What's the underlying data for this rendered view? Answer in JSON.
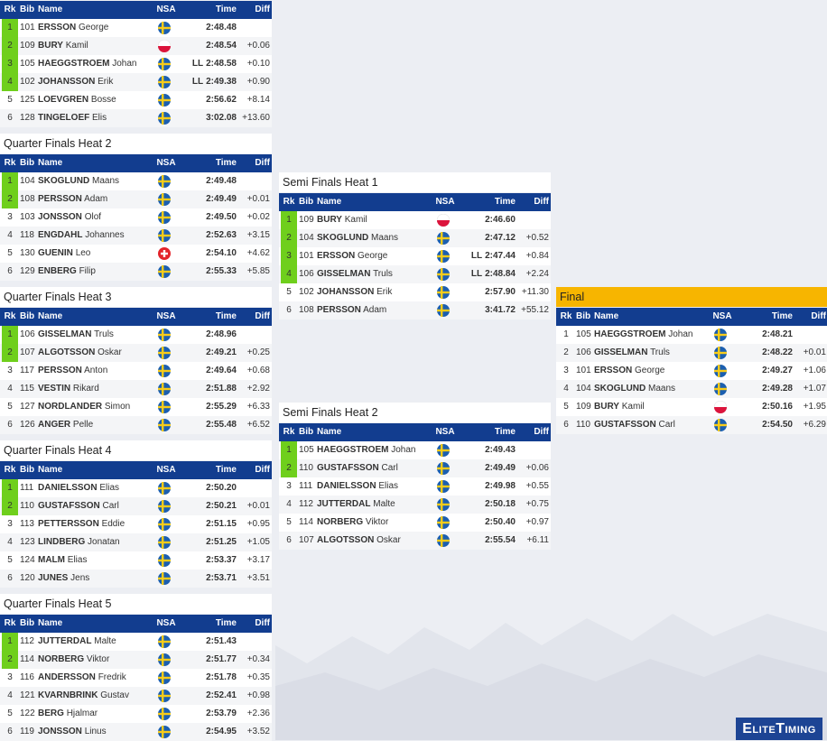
{
  "columns": {
    "rank": "Rk",
    "bib": "Bib",
    "name": "Name",
    "nsa": "NSA",
    "time": "Time",
    "diff": "Diff"
  },
  "heats": [
    {
      "qualified": 4,
      "rows": [
        {
          "rank": 1,
          "bib": 101,
          "last": "ERSSON",
          "first": "George",
          "flag": "SWE",
          "time": "2:48.48"
        },
        {
          "rank": 2,
          "bib": 109,
          "last": "BURY",
          "first": "Kamil",
          "flag": "POL",
          "time": "2:48.54",
          "diff": "+0.06"
        },
        {
          "rank": 3,
          "bib": 105,
          "last": "HAEGGSTROEM",
          "first": "Johan",
          "flag": "SWE",
          "note": "LL",
          "time": "2:48.58",
          "diff": "+0.10"
        },
        {
          "rank": 4,
          "bib": 102,
          "last": "JOHANSSON",
          "first": "Erik",
          "flag": "SWE",
          "note": "LL",
          "time": "2:49.38",
          "diff": "+0.90"
        },
        {
          "rank": 5,
          "bib": 125,
          "last": "LOEVGREN",
          "first": "Bosse",
          "flag": "SWE",
          "time": "2:56.62",
          "diff": "+8.14"
        },
        {
          "rank": 6,
          "bib": 128,
          "last": "TINGELOEF",
          "first": "Elis",
          "flag": "SWE",
          "time": "3:02.08",
          "diff": "+13.60"
        }
      ]
    },
    {
      "title": "Quarter Finals Heat 2",
      "qualified": 2,
      "rows": [
        {
          "rank": 1,
          "bib": 104,
          "last": "SKOGLUND",
          "first": "Maans",
          "flag": "SWE",
          "time": "2:49.48"
        },
        {
          "rank": 2,
          "bib": 108,
          "last": "PERSSON",
          "first": "Adam",
          "flag": "SWE",
          "time": "2:49.49",
          "diff": "+0.01"
        },
        {
          "rank": 3,
          "bib": 103,
          "last": "JONSSON",
          "first": "Olof",
          "flag": "SWE",
          "time": "2:49.50",
          "diff": "+0.02"
        },
        {
          "rank": 4,
          "bib": 118,
          "last": "ENGDAHL",
          "first": "Johannes",
          "flag": "SWE",
          "time": "2:52.63",
          "diff": "+3.15"
        },
        {
          "rank": 5,
          "bib": 130,
          "last": "GUENIN",
          "first": "Leo",
          "flag": "SUI",
          "time": "2:54.10",
          "diff": "+4.62"
        },
        {
          "rank": 6,
          "bib": 129,
          "last": "ENBERG",
          "first": "Filip",
          "flag": "SWE",
          "time": "2:55.33",
          "diff": "+5.85"
        }
      ]
    },
    {
      "title": "Quarter Finals Heat 3",
      "qualified": 2,
      "rows": [
        {
          "rank": 1,
          "bib": 106,
          "last": "GISSELMAN",
          "first": "Truls",
          "flag": "SWE",
          "time": "2:48.96"
        },
        {
          "rank": 2,
          "bib": 107,
          "last": "ALGOTSSON",
          "first": "Oskar",
          "flag": "SWE",
          "time": "2:49.21",
          "diff": "+0.25"
        },
        {
          "rank": 3,
          "bib": 117,
          "last": "PERSSON",
          "first": "Anton",
          "flag": "SWE",
          "time": "2:49.64",
          "diff": "+0.68"
        },
        {
          "rank": 4,
          "bib": 115,
          "last": "VESTIN",
          "first": "Rikard",
          "flag": "SWE",
          "time": "2:51.88",
          "diff": "+2.92"
        },
        {
          "rank": 5,
          "bib": 127,
          "last": "NORDLANDER",
          "first": "Simon",
          "flag": "SWE",
          "time": "2:55.29",
          "diff": "+6.33"
        },
        {
          "rank": 6,
          "bib": 126,
          "last": "ANGER",
          "first": "Pelle",
          "flag": "SWE",
          "time": "2:55.48",
          "diff": "+6.52"
        }
      ]
    },
    {
      "title": "Quarter Finals Heat 4",
      "qualified": 2,
      "rows": [
        {
          "rank": 1,
          "bib": 111,
          "last": "DANIELSSON",
          "first": "Elias",
          "flag": "SWE",
          "time": "2:50.20"
        },
        {
          "rank": 2,
          "bib": 110,
          "last": "GUSTAFSSON",
          "first": "Carl",
          "flag": "SWE",
          "time": "2:50.21",
          "diff": "+0.01"
        },
        {
          "rank": 3,
          "bib": 113,
          "last": "PETTERSSON",
          "first": "Eddie",
          "flag": "SWE",
          "time": "2:51.15",
          "diff": "+0.95"
        },
        {
          "rank": 4,
          "bib": 123,
          "last": "LINDBERG",
          "first": "Jonatan",
          "flag": "SWE",
          "time": "2:51.25",
          "diff": "+1.05"
        },
        {
          "rank": 5,
          "bib": 124,
          "last": "MALM",
          "first": "Elias",
          "flag": "SWE",
          "time": "2:53.37",
          "diff": "+3.17"
        },
        {
          "rank": 6,
          "bib": 120,
          "last": "JUNES",
          "first": "Jens",
          "flag": "SWE",
          "time": "2:53.71",
          "diff": "+3.51"
        }
      ]
    },
    {
      "title": "Quarter Finals Heat 5",
      "qualified": 2,
      "rows": [
        {
          "rank": 1,
          "bib": 112,
          "last": "JUTTERDAL",
          "first": "Malte",
          "flag": "SWE",
          "time": "2:51.43"
        },
        {
          "rank": 2,
          "bib": 114,
          "last": "NORBERG",
          "first": "Viktor",
          "flag": "SWE",
          "time": "2:51.77",
          "diff": "+0.34"
        },
        {
          "rank": 3,
          "bib": 116,
          "last": "ANDERSSON",
          "first": "Fredrik",
          "flag": "SWE",
          "time": "2:51.78",
          "diff": "+0.35"
        },
        {
          "rank": 4,
          "bib": 121,
          "last": "KVARNBRINK",
          "first": "Gustav",
          "flag": "SWE",
          "time": "2:52.41",
          "diff": "+0.98"
        },
        {
          "rank": 5,
          "bib": 122,
          "last": "BERG",
          "first": "Hjalmar",
          "flag": "SWE",
          "time": "2:53.79",
          "diff": "+2.36"
        },
        {
          "rank": 6,
          "bib": 119,
          "last": "JONSSON",
          "first": "Linus",
          "flag": "SWE",
          "time": "2:54.95",
          "diff": "+3.52"
        }
      ]
    },
    {
      "title": "Semi Finals Heat 1",
      "qualified": 4,
      "rows": [
        {
          "rank": 1,
          "bib": 109,
          "last": "BURY",
          "first": "Kamil",
          "flag": "POL",
          "time": "2:46.60"
        },
        {
          "rank": 2,
          "bib": 104,
          "last": "SKOGLUND",
          "first": "Maans",
          "flag": "SWE",
          "time": "2:47.12",
          "diff": "+0.52"
        },
        {
          "rank": 3,
          "bib": 101,
          "last": "ERSSON",
          "first": "George",
          "flag": "SWE",
          "note": "LL",
          "time": "2:47.44",
          "diff": "+0.84"
        },
        {
          "rank": 4,
          "bib": 106,
          "last": "GISSELMAN",
          "first": "Truls",
          "flag": "SWE",
          "note": "LL",
          "time": "2:48.84",
          "diff": "+2.24"
        },
        {
          "rank": 5,
          "bib": 102,
          "last": "JOHANSSON",
          "first": "Erik",
          "flag": "SWE",
          "time": "2:57.90",
          "diff": "+11.30"
        },
        {
          "rank": 6,
          "bib": 108,
          "last": "PERSSON",
          "first": "Adam",
          "flag": "SWE",
          "time": "3:41.72",
          "diff": "+55.12"
        }
      ]
    },
    {
      "title": "Semi Finals Heat 2",
      "qualified": 2,
      "rows": [
        {
          "rank": 1,
          "bib": 105,
          "last": "HAEGGSTROEM",
          "first": "Johan",
          "flag": "SWE",
          "time": "2:49.43"
        },
        {
          "rank": 2,
          "bib": 110,
          "last": "GUSTAFSSON",
          "first": "Carl",
          "flag": "SWE",
          "time": "2:49.49",
          "diff": "+0.06"
        },
        {
          "rank": 3,
          "bib": 111,
          "last": "DANIELSSON",
          "first": "Elias",
          "flag": "SWE",
          "time": "2:49.98",
          "diff": "+0.55"
        },
        {
          "rank": 4,
          "bib": 112,
          "last": "JUTTERDAL",
          "first": "Malte",
          "flag": "SWE",
          "time": "2:50.18",
          "diff": "+0.75"
        },
        {
          "rank": 5,
          "bib": 114,
          "last": "NORBERG",
          "first": "Viktor",
          "flag": "SWE",
          "time": "2:50.40",
          "diff": "+0.97"
        },
        {
          "rank": 6,
          "bib": 107,
          "last": "ALGOTSSON",
          "first": "Oskar",
          "flag": "SWE",
          "time": "2:55.54",
          "diff": "+6.11"
        }
      ]
    },
    {
      "title": "Final",
      "title_color": "#f7b500",
      "qualified": 0,
      "rows": [
        {
          "rank": 1,
          "bib": 105,
          "last": "HAEGGSTROEM",
          "first": "Johan",
          "flag": "SWE",
          "time": "2:48.21"
        },
        {
          "rank": 2,
          "bib": 106,
          "last": "GISSELMAN",
          "first": "Truls",
          "flag": "SWE",
          "time": "2:48.22",
          "diff": "+0.01"
        },
        {
          "rank": 3,
          "bib": 101,
          "last": "ERSSON",
          "first": "George",
          "flag": "SWE",
          "time": "2:49.27",
          "diff": "+1.06"
        },
        {
          "rank": 4,
          "bib": 104,
          "last": "SKOGLUND",
          "first": "Maans",
          "flag": "SWE",
          "time": "2:49.28",
          "diff": "+1.07"
        },
        {
          "rank": 5,
          "bib": 109,
          "last": "BURY",
          "first": "Kamil",
          "flag": "POL",
          "time": "2:50.16",
          "diff": "+1.95"
        },
        {
          "rank": 6,
          "bib": 110,
          "last": "GUSTAFSSON",
          "first": "Carl",
          "flag": "SWE",
          "time": "2:54.50",
          "diff": "+6.29"
        }
      ]
    }
  ],
  "logo": "EliteTiming"
}
